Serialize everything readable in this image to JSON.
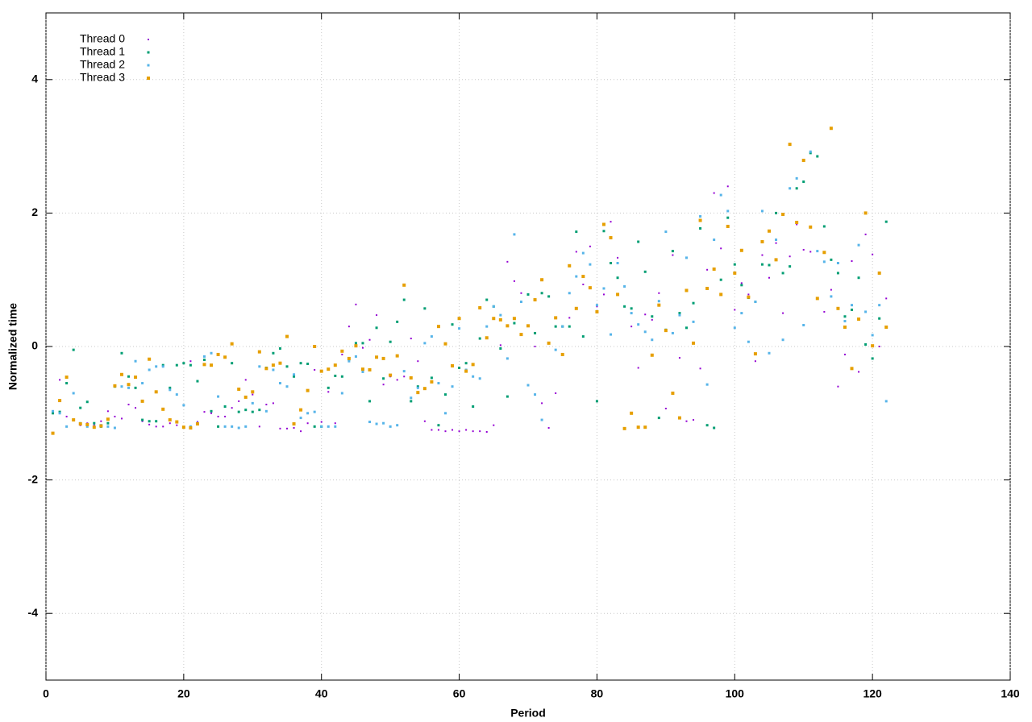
{
  "chart_data": {
    "type": "scatter",
    "xlabel": "Period",
    "ylabel": "Normalized time",
    "xlim": [
      0,
      140
    ],
    "ylim": [
      -5,
      5
    ],
    "xticks": [
      0,
      20,
      40,
      60,
      80,
      100,
      120,
      140
    ],
    "yticks": [
      -4,
      -2,
      0,
      2,
      4
    ],
    "grid": true,
    "legend": "top-left",
    "x": [
      1,
      2,
      3,
      4,
      5,
      6,
      7,
      8,
      9,
      10,
      11,
      12,
      13,
      14,
      15,
      16,
      17,
      18,
      19,
      20,
      21,
      22,
      23,
      24,
      25,
      26,
      27,
      28,
      29,
      30,
      31,
      32,
      33,
      34,
      35,
      36,
      37,
      38,
      39,
      40,
      41,
      42,
      43,
      44,
      45,
      46,
      47,
      48,
      49,
      50,
      51,
      52,
      53,
      54,
      55,
      56,
      57,
      58,
      59,
      60,
      61,
      62,
      63,
      64,
      65,
      66,
      67,
      68,
      69,
      70,
      71,
      72,
      73,
      74,
      75,
      76,
      77,
      78,
      79,
      80,
      81,
      82,
      83,
      84,
      85,
      86,
      87,
      88,
      89,
      90,
      91,
      92,
      93,
      94,
      95,
      96,
      97,
      98,
      99,
      100,
      101,
      102,
      103,
      104,
      105,
      106,
      107,
      108,
      109,
      110,
      111,
      112,
      113,
      114,
      115,
      116,
      117,
      118,
      119,
      120,
      121,
      122
    ],
    "series": [
      {
        "name": "Thread 0",
        "color": "#9400d3",
        "values": [
          -1.3,
          -0.5,
          -1.05,
          -1.1,
          -1.18,
          -1.15,
          -1.18,
          -1.12,
          -0.97,
          -1.05,
          -1.08,
          -0.87,
          -0.92,
          -1.12,
          -1.17,
          -1.2,
          -1.2,
          -1.15,
          -1.18,
          -0.25,
          -0.22,
          -1.13,
          -0.98,
          -1.0,
          -1.05,
          -1.05,
          -0.92,
          -0.82,
          -0.5,
          -0.72,
          -1.2,
          -0.87,
          -0.85,
          -1.23,
          -1.23,
          -1.22,
          -1.27,
          -1.15,
          -0.35,
          -1.13,
          -0.68,
          -1.15,
          -0.12,
          0.3,
          0.63,
          -0.02,
          0.1,
          0.47,
          -0.57,
          -0.45,
          -0.5,
          -0.45,
          0.12,
          -0.22,
          -1.12,
          -1.25,
          -1.25,
          -1.27,
          -1.25,
          -1.27,
          -1.25,
          -1.27,
          -1.27,
          -1.28,
          -1.18,
          0.02,
          1.27,
          0.98,
          0.8,
          0.78,
          0.0,
          -0.85,
          -1.22,
          -0.7,
          0.3,
          0.43,
          1.42,
          0.93,
          1.5,
          0.6,
          0.78,
          1.87,
          1.33,
          0.6,
          0.3,
          -0.32,
          0.48,
          0.4,
          0.8,
          -0.93,
          1.37,
          -0.17,
          -1.12,
          -1.1,
          -0.33,
          1.15,
          2.3,
          1.47,
          2.4,
          0.55,
          0.95,
          0.78,
          -0.22,
          1.37,
          1.03,
          1.55,
          0.5,
          1.35,
          1.83,
          1.45,
          1.42,
          1.43,
          0.52,
          0.85,
          -0.6,
          -0.12,
          1.28,
          -0.38,
          1.68,
          1.38,
          0.0,
          0.72
        ]
      },
      {
        "name": "Thread 1",
        "color": "#009e73",
        "values": [
          -1.0,
          -0.98,
          -0.55,
          -0.05,
          -0.92,
          -0.83,
          -1.15,
          -1.2,
          -1.15,
          -0.6,
          -0.1,
          -0.45,
          -0.62,
          -1.1,
          -1.12,
          -1.12,
          -0.28,
          -0.62,
          -0.28,
          -0.25,
          -0.28,
          -0.52,
          -0.2,
          -0.97,
          -1.2,
          -0.9,
          -0.25,
          -0.98,
          -0.95,
          -0.98,
          -0.95,
          -0.32,
          -0.1,
          -0.03,
          -0.3,
          -0.45,
          -0.25,
          -0.26,
          -1.2,
          -1.2,
          -0.62,
          -0.44,
          -0.45,
          -0.2,
          0.05,
          0.05,
          -0.82,
          0.28,
          -0.48,
          0.07,
          0.37,
          0.7,
          -0.82,
          -0.6,
          0.57,
          -0.47,
          -1.18,
          -0.72,
          0.33,
          -0.32,
          -0.25,
          -0.9,
          0.12,
          0.7,
          0.6,
          -0.03,
          -0.75,
          0.35,
          0.18,
          0.78,
          0.2,
          0.8,
          0.75,
          0.3,
          0.3,
          0.3,
          1.72,
          0.15,
          0.88,
          -0.82,
          1.73,
          1.25,
          1.03,
          0.6,
          0.57,
          1.57,
          1.12,
          0.45,
          -1.07,
          0.25,
          1.43,
          0.5,
          0.28,
          0.65,
          1.77,
          -1.18,
          -1.22,
          1.0,
          1.93,
          1.23,
          0.92,
          0.73,
          0.67,
          1.23,
          1.22,
          2.0,
          1.1,
          1.2,
          2.37,
          2.47,
          2.9,
          2.85,
          1.8,
          1.3,
          1.1,
          0.45,
          0.55,
          1.03,
          0.03,
          -0.18,
          0.42,
          1.87
        ]
      },
      {
        "name": "Thread 2",
        "color": "#56b4e9",
        "values": [
          -0.97,
          -1.0,
          -1.2,
          -0.7,
          -1.15,
          -1.2,
          -1.2,
          -1.18,
          -1.2,
          -1.22,
          -0.6,
          -0.62,
          -0.22,
          -0.55,
          -0.35,
          -0.3,
          -0.3,
          -0.65,
          -0.72,
          -0.88,
          -1.2,
          -1.15,
          -0.15,
          -0.1,
          -0.75,
          -1.2,
          -1.2,
          -1.22,
          -1.2,
          -0.85,
          -0.3,
          -0.97,
          -0.35,
          -0.55,
          -0.6,
          -0.42,
          -1.07,
          -1.0,
          -0.98,
          -1.2,
          -1.2,
          -1.2,
          -0.7,
          -0.22,
          -0.15,
          -0.38,
          -1.13,
          -1.16,
          -1.15,
          -1.2,
          -1.18,
          -0.37,
          -0.77,
          -0.62,
          0.05,
          0.15,
          -0.55,
          -1.0,
          -0.6,
          0.27,
          -0.35,
          -0.45,
          -0.48,
          0.3,
          0.6,
          0.47,
          -0.18,
          1.68,
          0.67,
          -0.58,
          -0.72,
          -1.1,
          0.05,
          -0.05,
          0.3,
          0.8,
          1.05,
          1.4,
          1.23,
          0.62,
          0.87,
          0.18,
          1.25,
          0.9,
          0.5,
          0.33,
          0.22,
          0.1,
          0.68,
          1.72,
          0.2,
          0.47,
          1.33,
          0.37,
          1.95,
          -0.57,
          1.6,
          2.27,
          2.03,
          0.28,
          0.5,
          0.07,
          0.67,
          2.03,
          -0.1,
          1.6,
          0.1,
          2.37,
          2.52,
          0.32,
          2.92,
          1.43,
          1.27,
          0.75,
          1.25,
          0.38,
          0.62,
          1.52,
          0.52,
          0.17,
          0.62,
          -0.82
        ]
      },
      {
        "name": "Thread 3",
        "color": "#e69f00",
        "values": [
          -1.3,
          -0.81,
          -0.46,
          -1.1,
          -1.16,
          -1.17,
          -1.21,
          -1.19,
          -1.09,
          -0.59,
          -0.42,
          -0.57,
          -0.46,
          -0.82,
          -0.19,
          -0.68,
          -0.94,
          -1.1,
          -1.13,
          -1.21,
          -1.22,
          -1.16,
          -0.27,
          -0.28,
          -0.12,
          -0.16,
          0.04,
          -0.64,
          -0.76,
          -0.68,
          -0.08,
          -0.33,
          -0.28,
          -0.25,
          0.15,
          -1.16,
          -0.95,
          -0.66,
          0,
          -0.37,
          -0.34,
          -0.28,
          -0.07,
          -0.18,
          0.01,
          -0.34,
          -0.35,
          -0.16,
          -0.18,
          -0.43,
          -0.14,
          0.92,
          -0.47,
          -0.69,
          -0.63,
          -0.53,
          0.3,
          0.04,
          -0.29,
          0.42,
          -0.37,
          -0.27,
          0.58,
          0.13,
          0.42,
          0.4,
          0.31,
          0.42,
          0.18,
          0.31,
          0.7,
          1.0,
          0.05,
          0.43,
          -0.12,
          1.21,
          0.57,
          1.05,
          0.88,
          0.52,
          1.83,
          1.63,
          0.78,
          -1.23,
          -1.0,
          -1.21,
          -1.21,
          -0.13,
          0.62,
          0.24,
          -0.7,
          -1.07,
          0.84,
          0.05,
          1.89,
          0.87,
          1.16,
          0.78,
          1.8,
          1.1,
          1.44,
          0.74,
          -0.11,
          1.57,
          1.73,
          1.3,
          1.98,
          3.03,
          1.86,
          2.79,
          1.79,
          0.72,
          1.41,
          3.27,
          0.57,
          0.29,
          -0.33,
          0.41,
          2.0,
          0.01,
          1.1,
          0.29
        ]
      }
    ]
  }
}
